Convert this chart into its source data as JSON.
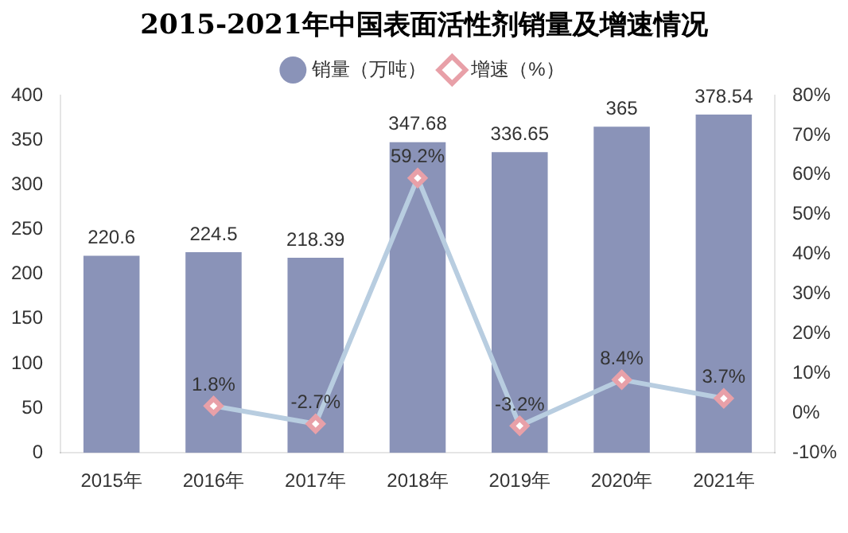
{
  "chart_data": {
    "type": "bar",
    "title": "2015-2021年中国表面活性剂销量及增速情况",
    "categories": [
      "2015年",
      "2016年",
      "2017年",
      "2018年",
      "2019年",
      "2020年",
      "2021年"
    ],
    "series": [
      {
        "name": "销量（万吨）",
        "color": "#8a93b8",
        "values": [
          220.6,
          224.5,
          218.39,
          347.68,
          336.65,
          365,
          378.54
        ],
        "value_labels": [
          "220.6",
          "224.5",
          "218.39",
          "347.68",
          "336.65",
          "365",
          "378.54"
        ]
      },
      {
        "name": "增速（%）",
        "type": "line",
        "axis": "y2",
        "color": "#b8cde0",
        "values": [
          null,
          1.8,
          -2.7,
          59.2,
          -3.2,
          8.4,
          3.7
        ],
        "value_labels": [
          null,
          "1.8%",
          "-2.7%",
          "59.2%",
          "-3.2%",
          "8.4%",
          "3.7%"
        ]
      }
    ],
    "ylim": [
      0,
      400
    ],
    "yticks": [
      0,
      50,
      100,
      150,
      200,
      250,
      300,
      350,
      400
    ],
    "y2lim": [
      -10,
      80
    ],
    "y2ticks": [
      {
        "value": -10,
        "label": "-10%"
      },
      {
        "value": 0,
        "label": "0%"
      },
      {
        "value": 10,
        "label": "10%"
      },
      {
        "value": 20,
        "label": "20%"
      },
      {
        "value": 30,
        "label": "30%"
      },
      {
        "value": 40,
        "label": "40%"
      },
      {
        "value": 50,
        "label": "50%"
      },
      {
        "value": 60,
        "label": "60%"
      },
      {
        "value": 70,
        "label": "70%"
      },
      {
        "value": 80,
        "label": "80%"
      }
    ],
    "legend": "top",
    "grid": false,
    "marker": "diamond",
    "line_style": "solid"
  }
}
